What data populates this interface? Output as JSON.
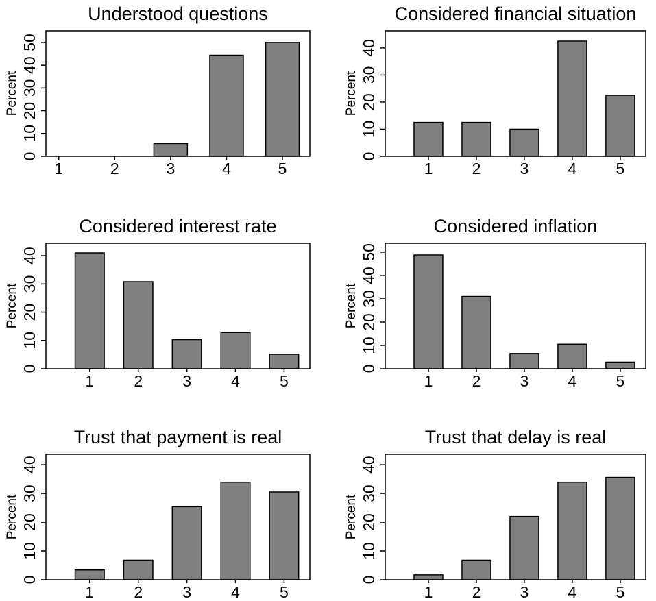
{
  "chart_data": [
    {
      "type": "bar",
      "title": "Understood questions",
      "y_label": "Percent",
      "color": "#808080",
      "x": [
        1,
        2,
        3,
        4,
        5
      ],
      "values": [
        0,
        0,
        5.6,
        44.4,
        50
      ],
      "xlim": [
        0.77,
        5.49
      ],
      "xticks": [
        1,
        2,
        3,
        4,
        5
      ],
      "ylim": [
        0,
        55.1
      ],
      "yticks": [
        0,
        10,
        20,
        30,
        40,
        50
      ]
    },
    {
      "type": "bar",
      "title": "Considered financial situation",
      "y_label": "Percent",
      "color": "#808080",
      "x": [
        1,
        2,
        3,
        4,
        5
      ],
      "values": [
        12.5,
        12.5,
        10,
        42.5,
        22.5
      ],
      "xlim": [
        0.1,
        5.53
      ],
      "xticks": [
        1,
        2,
        3,
        4,
        5
      ],
      "ylim": [
        0,
        46.3
      ],
      "yticks": [
        0,
        10,
        20,
        30,
        40
      ]
    },
    {
      "type": "bar",
      "title": "Considered interest rate",
      "y_label": "Percent",
      "color": "#808080",
      "x": [
        1,
        2,
        3,
        4,
        5
      ],
      "values": [
        41,
        30.8,
        10.3,
        12.8,
        5.1
      ],
      "xlim": [
        0.1,
        5.53
      ],
      "xticks": [
        1,
        2,
        3,
        4,
        5
      ],
      "ylim": [
        0,
        44.4
      ],
      "yticks": [
        0,
        10,
        20,
        30,
        40
      ]
    },
    {
      "type": "bar",
      "title": "Considered inflation",
      "y_label": "Percent",
      "color": "#808080",
      "x": [
        1,
        2,
        3,
        4,
        5
      ],
      "values": [
        48.8,
        31,
        6.5,
        10.5,
        2.8
      ],
      "xlim": [
        0.1,
        5.53
      ],
      "xticks": [
        1,
        2,
        3,
        4,
        5
      ],
      "ylim": [
        0,
        53.8
      ],
      "yticks": [
        0,
        10,
        20,
        30,
        40,
        50
      ]
    },
    {
      "type": "bar",
      "title": "Trust that payment is real",
      "y_label": "Percent",
      "color": "#808080",
      "x": [
        1,
        2,
        3,
        4,
        5
      ],
      "values": [
        3.4,
        6.8,
        25.4,
        33.9,
        30.5
      ],
      "xlim": [
        0.1,
        5.53
      ],
      "xticks": [
        1,
        2,
        3,
        4,
        5
      ],
      "ylim": [
        0,
        43.6
      ],
      "yticks": [
        0,
        10,
        20,
        30,
        40
      ]
    },
    {
      "type": "bar",
      "title": "Trust that delay is real",
      "y_label": "Percent",
      "color": "#808080",
      "x": [
        1,
        2,
        3,
        4,
        5
      ],
      "values": [
        1.7,
        6.8,
        22,
        33.9,
        35.6
      ],
      "xlim": [
        0.1,
        5.53
      ],
      "xticks": [
        1,
        2,
        3,
        4,
        5
      ],
      "ylim": [
        0,
        43.6
      ],
      "yticks": [
        0,
        10,
        20,
        30,
        40
      ]
    }
  ]
}
